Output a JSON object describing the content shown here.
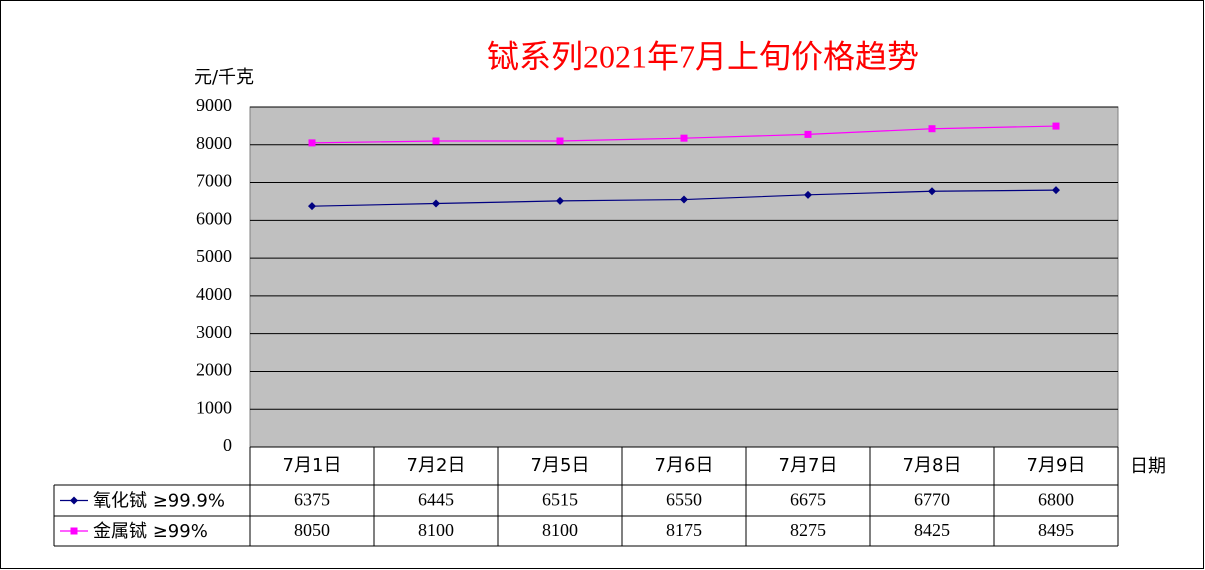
{
  "chart_data": {
    "type": "line",
    "title": "铽系列2021年7月上旬价格趋势",
    "y_label": "元/千克",
    "x_label": "日期",
    "categories": [
      "7月1日",
      "7月2日",
      "7月5日",
      "7月6日",
      "7月7日",
      "7月8日",
      "7月9日"
    ],
    "series": [
      {
        "name": "氧化铽 ≥99.9%",
        "color": "#000080",
        "marker": "diamond",
        "values": [
          6375,
          6445,
          6515,
          6550,
          6675,
          6770,
          6800
        ]
      },
      {
        "name": "金属铽 ≥99%",
        "color": "#ff00ff",
        "marker": "square",
        "values": [
          8050,
          8100,
          8100,
          8175,
          8275,
          8425,
          8495
        ]
      }
    ],
    "ylim": [
      0,
      9000
    ],
    "yticks": [
      0,
      1000,
      2000,
      3000,
      4000,
      5000,
      6000,
      7000,
      8000,
      9000
    ],
    "grid": true,
    "data_table": true
  }
}
